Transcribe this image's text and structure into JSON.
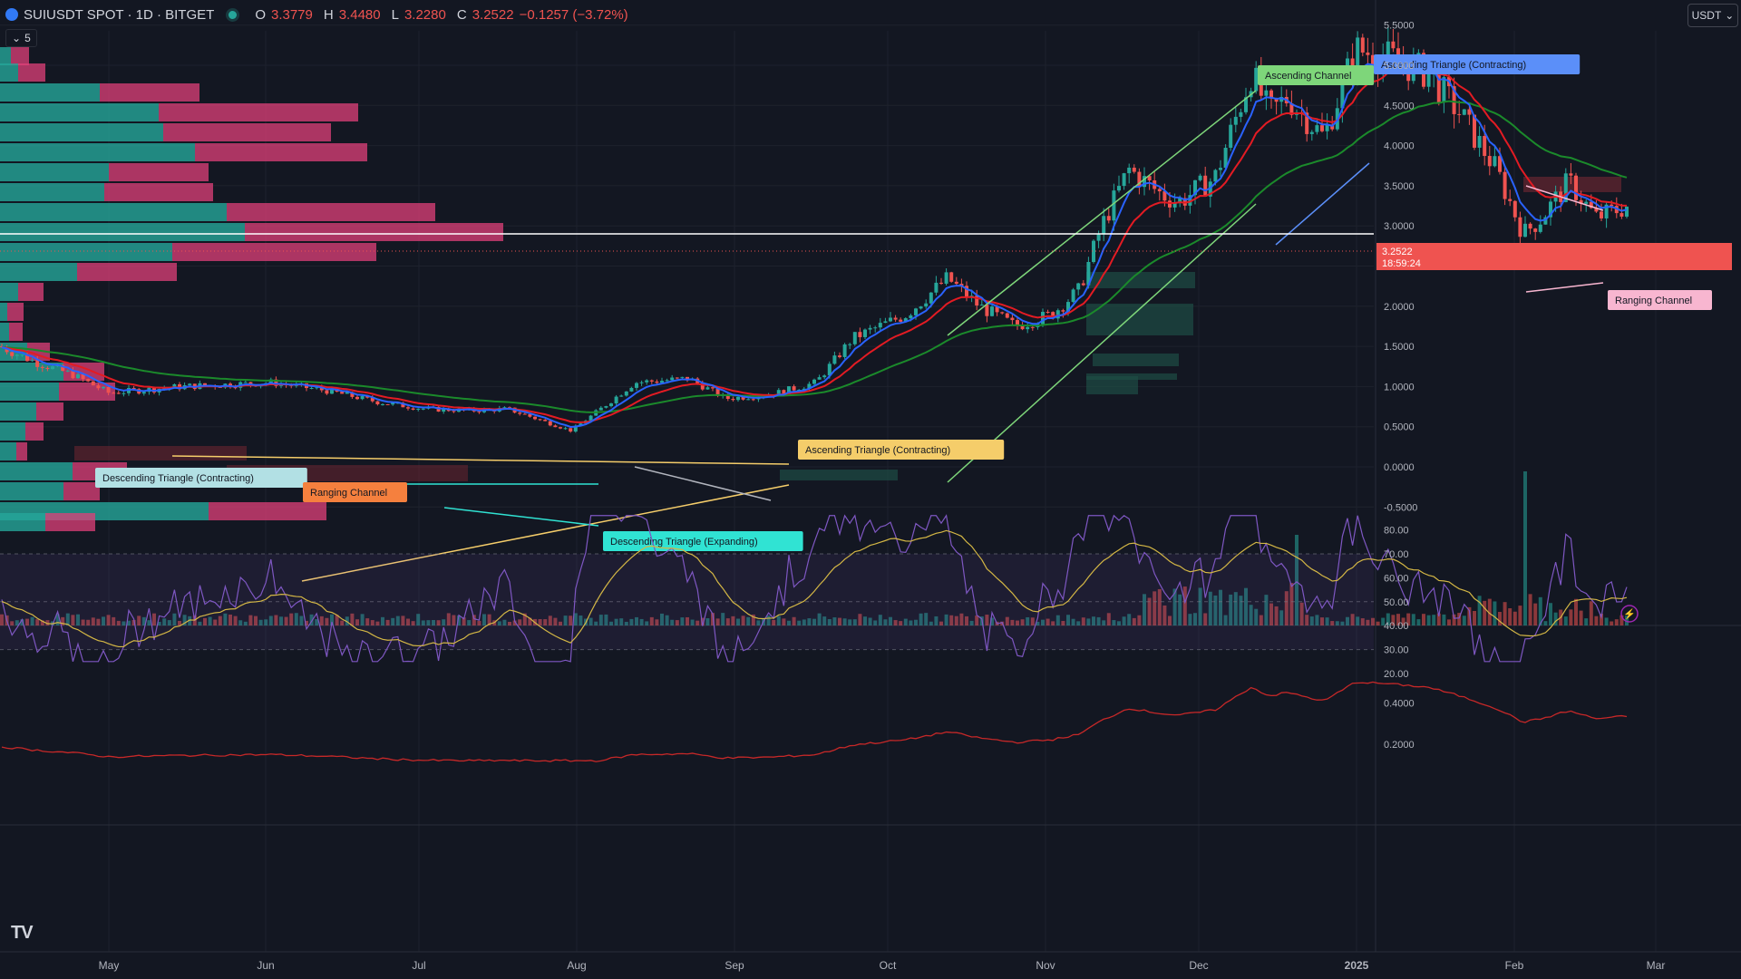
{
  "header": {
    "symbol": "SUIUSDT SPOT · 1D · BITGET",
    "o_label": "O",
    "o_value": "3.3779",
    "h_label": "H",
    "h_value": "3.4480",
    "l_label": "L",
    "l_value": "3.2280",
    "c_label": "C",
    "c_value": "3.2522",
    "change": "−0.1257 (−3.72%)",
    "indicator_toggle": "5"
  },
  "currency_button": "USDT",
  "colors": {
    "up": "#26a69a",
    "down": "#ef5350",
    "background": "#131722",
    "grid": "#1e222d",
    "rsi": "#7e57c2",
    "rsi_ma": "#d4b745",
    "ema_fast": "#2962ff",
    "ema_mid": "#e31b23",
    "ema_slow": "#1b8a2b"
  },
  "price_axis": {
    "ticks": [
      "5.5000",
      "5.0000",
      "4.5000",
      "4.0000",
      "3.5000",
      "3.0000",
      "2.5000",
      "2.0000",
      "1.5000",
      "1.0000",
      "0.5000",
      "0.0000",
      "-0.5000"
    ],
    "last_price": "3.2522",
    "countdown": "18:59:24"
  },
  "rsi_axis": {
    "ticks": [
      "80.00",
      "70.00",
      "60.00",
      "50.00",
      "40.00",
      "30.00",
      "20.00"
    ]
  },
  "lower_axis": {
    "ticks": [
      "0.4000",
      "0.2000"
    ]
  },
  "time_axis": {
    "labels": [
      "May",
      "Jun",
      "Jul",
      "Aug",
      "Sep",
      "Oct",
      "Nov",
      "Dec",
      "2025",
      "Feb",
      "Mar"
    ]
  },
  "patterns": [
    {
      "label": "Ascending Channel",
      "color": "#7ed67a"
    },
    {
      "label": "Ascending Triangle (Contracting)",
      "color": "#5b8ff9"
    },
    {
      "label": "Ranging Channel",
      "color": "#f8b6d0"
    },
    {
      "label": "Ascending Triangle (Contracting)",
      "color": "#f5cd6a"
    },
    {
      "label": "Descending Triangle (Expanding)",
      "color": "#30e3d3"
    },
    {
      "label": "Descending Triangle (Contracting)",
      "color": "#b2e0e4"
    },
    {
      "label": "Ranging Channel",
      "color": "#f5803e"
    }
  ],
  "icons": {
    "logo": "tradingview-logo-icon",
    "symbol": "sui-logo-icon",
    "bolt": "lightning-icon"
  }
}
